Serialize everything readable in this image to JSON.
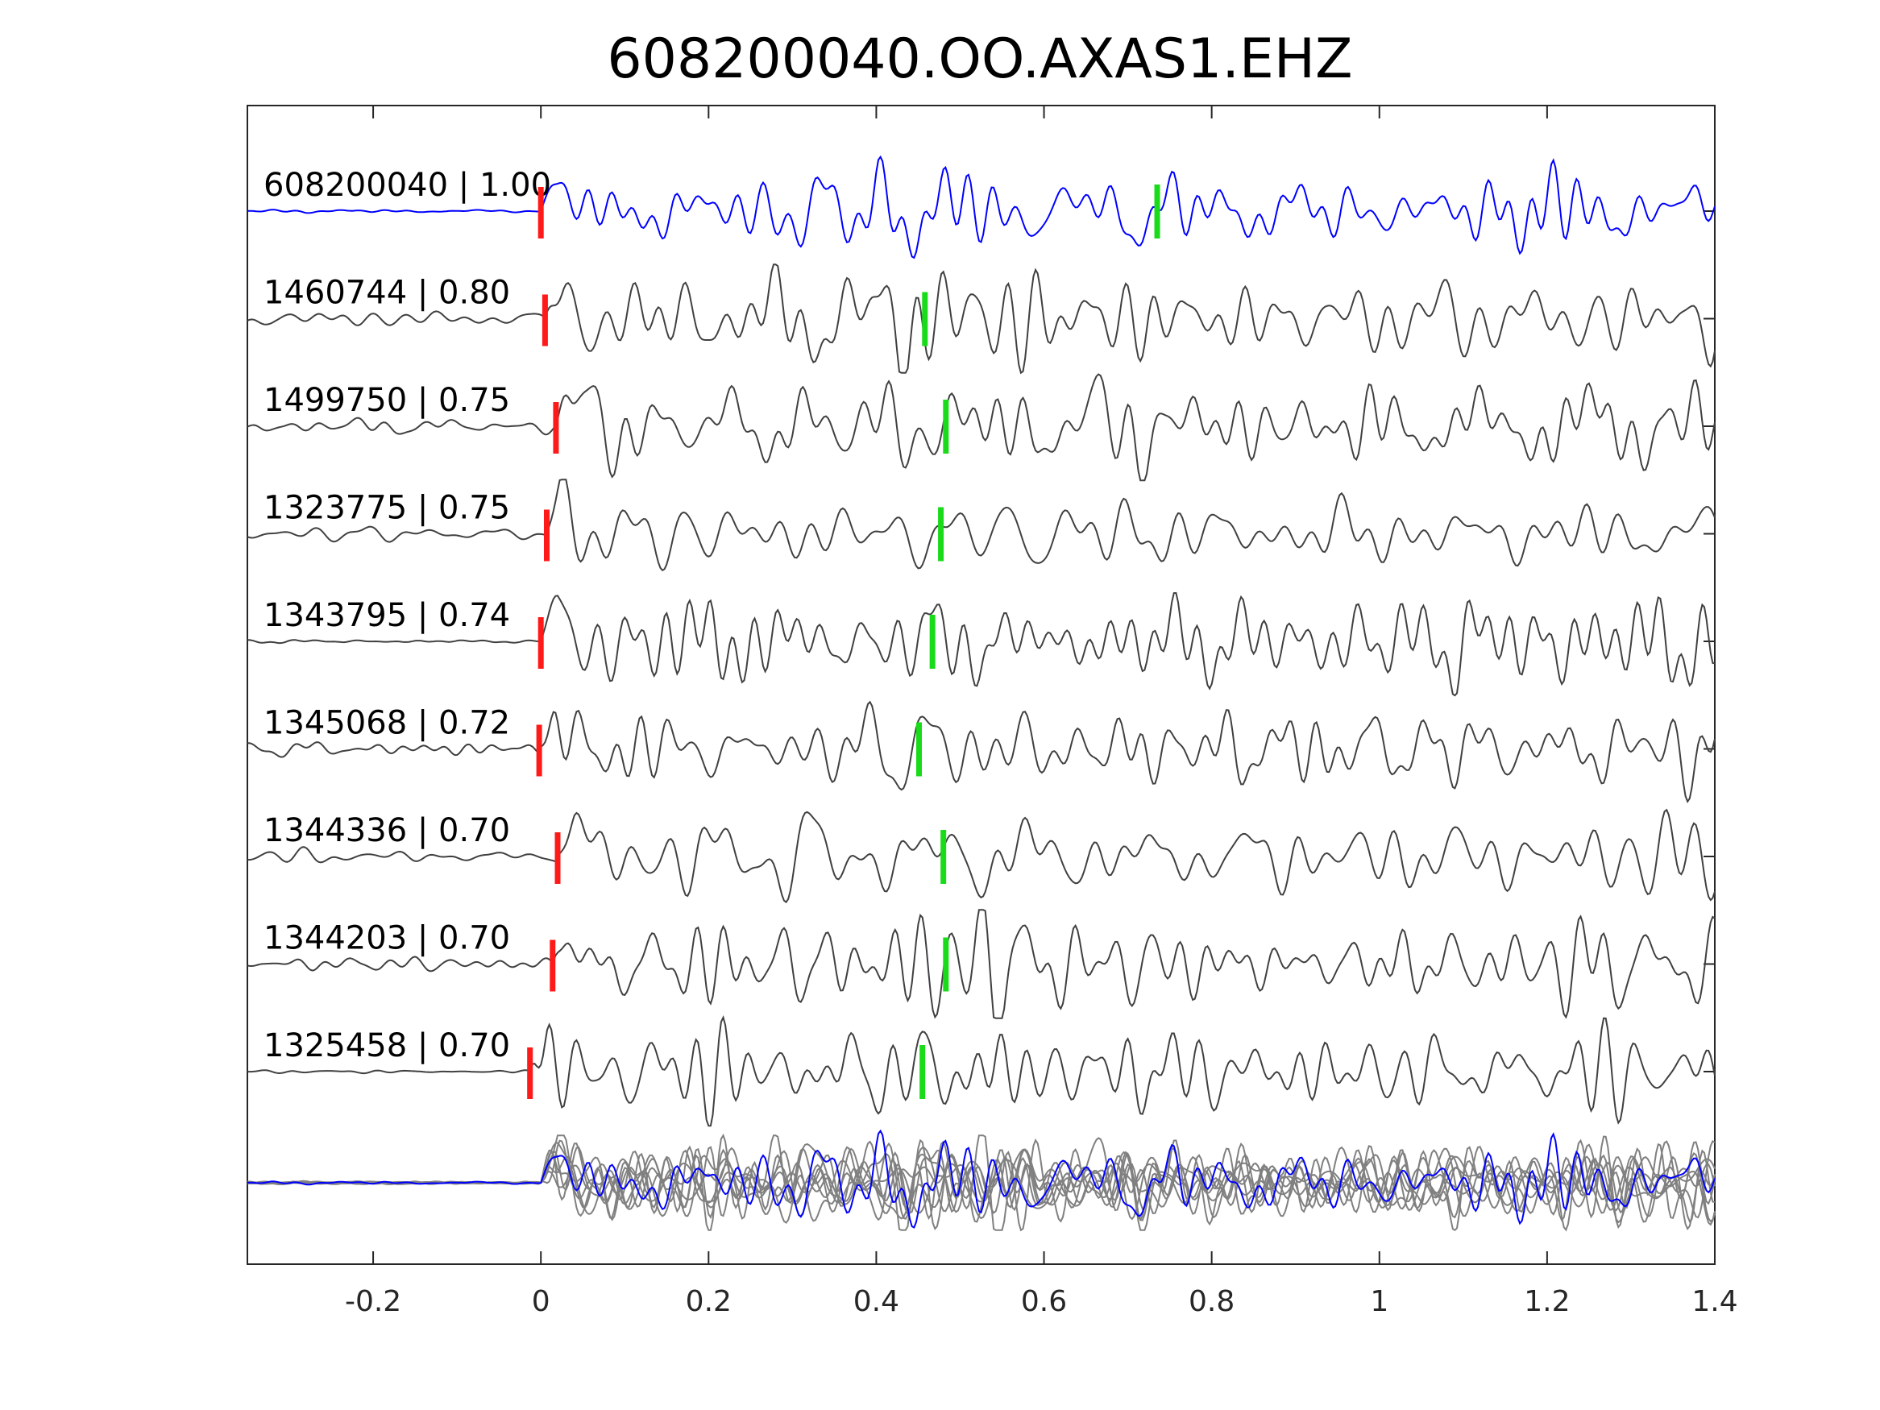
{
  "chart_data": {
    "type": "line",
    "title": "608200040.OO.AXAS1.EHZ",
    "xlabel": "",
    "ylabel": "",
    "xlim": [
      -0.35,
      1.4
    ],
    "xticks": [
      -0.2,
      0,
      0.2,
      0.4,
      0.6,
      0.8,
      1,
      1.2,
      1.4
    ],
    "xtick_labels": [
      "-0.2",
      "0",
      "0.2",
      "0.4",
      "0.6",
      "0.8",
      "1",
      "1.2",
      "1.4"
    ],
    "grid": false,
    "colors": {
      "template": "#0000ff",
      "trace": "#404040",
      "overlay": "#808080",
      "p_pick": "#ff1a1a",
      "s_pick": "#1adb1a"
    },
    "series": [
      {
        "label": "608200040 | 1.00",
        "p_pick": 0.0,
        "s_pick": 0.735,
        "template": true,
        "quiet_pre_event": true,
        "seed": 11
      },
      {
        "label": "1460744 | 0.80",
        "p_pick": 0.005,
        "s_pick": 0.458,
        "template": false,
        "quiet_pre_event": false,
        "seed": 23
      },
      {
        "label": "1499750 | 0.75",
        "p_pick": 0.018,
        "s_pick": 0.483,
        "template": false,
        "quiet_pre_event": false,
        "seed": 37
      },
      {
        "label": "1323775 | 0.75",
        "p_pick": 0.007,
        "s_pick": 0.477,
        "template": false,
        "quiet_pre_event": false,
        "seed": 41
      },
      {
        "label": "1343795 | 0.74",
        "p_pick": 0.0,
        "s_pick": 0.467,
        "template": false,
        "quiet_pre_event": true,
        "seed": 53
      },
      {
        "label": "1345068 | 0.72",
        "p_pick": -0.002,
        "s_pick": 0.451,
        "template": false,
        "quiet_pre_event": false,
        "seed": 67
      },
      {
        "label": "1344336 | 0.70",
        "p_pick": 0.02,
        "s_pick": 0.48,
        "template": false,
        "quiet_pre_event": false,
        "seed": 71
      },
      {
        "label": "1344203 | 0.70",
        "p_pick": 0.014,
        "s_pick": 0.483,
        "template": false,
        "quiet_pre_event": false,
        "seed": 83
      },
      {
        "label": "1325458 | 0.70",
        "p_pick": -0.013,
        "s_pick": 0.455,
        "template": false,
        "quiet_pre_event": true,
        "seed": 97
      }
    ],
    "stack": {
      "overlay_count": 8
    }
  }
}
